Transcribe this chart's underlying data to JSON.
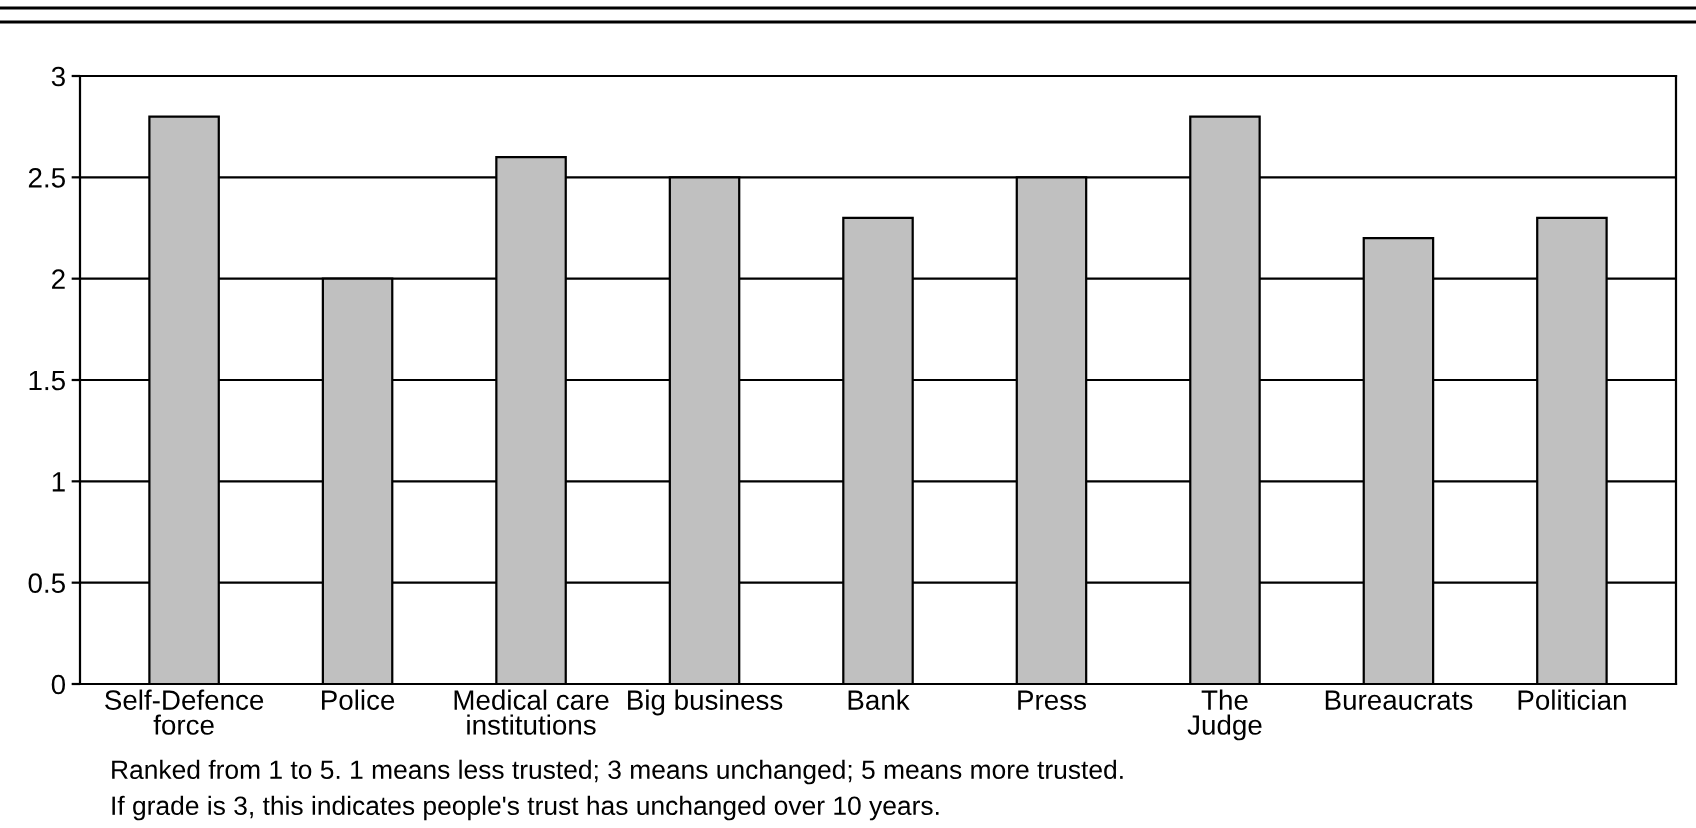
{
  "chart_data": {
    "type": "bar",
    "categories": [
      "Self-Defence\nforce",
      "Police",
      "Medical care\ninstitutions",
      "Big business",
      "Bank",
      "Press",
      "The\nJudge",
      "Bureaucrats",
      "Politician"
    ],
    "values": [
      2.8,
      2.0,
      2.6,
      2.5,
      2.3,
      2.5,
      2.8,
      2.2,
      2.3
    ],
    "color": "#c0c0c0",
    "ylim": [
      0,
      3
    ],
    "yticks": [
      0,
      0.5,
      1,
      1.5,
      2,
      2.5,
      3
    ],
    "grid": "y",
    "annotations": [
      "Ranked from 1 to 5. 1 means less trusted; 3 means unchanged; 5 means more trusted.",
      "If grade is 3, this indicates people's trust has unchanged over 10 years."
    ]
  }
}
